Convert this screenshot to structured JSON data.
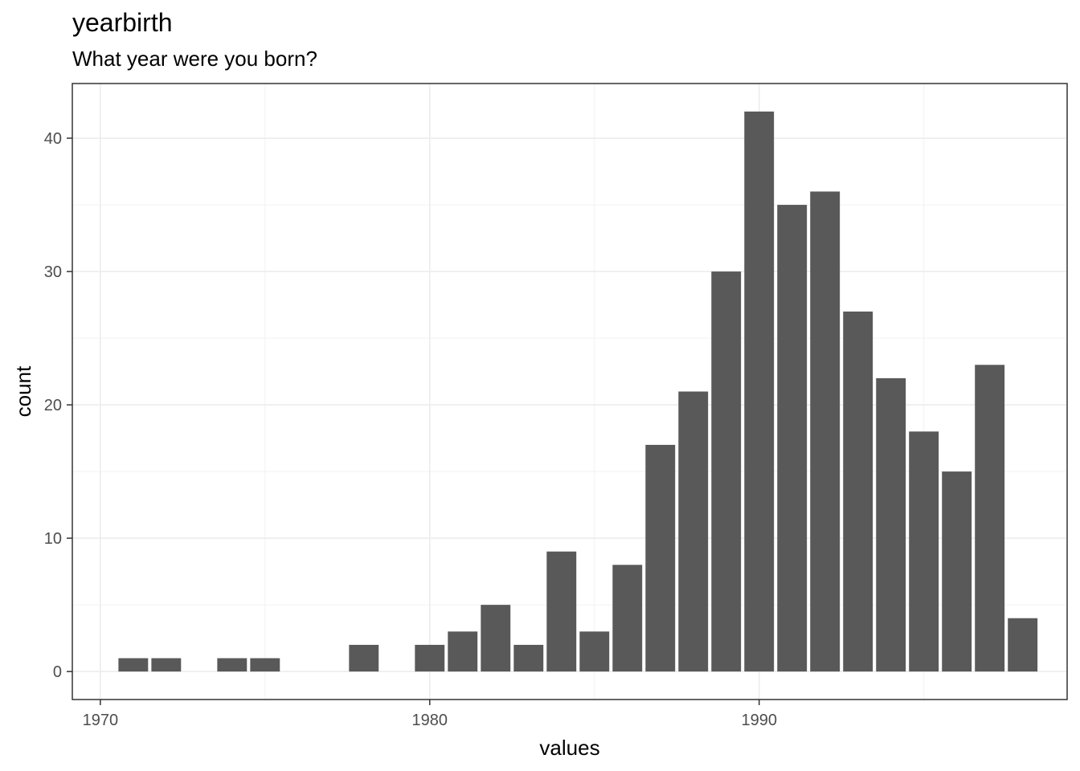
{
  "chart_data": {
    "type": "bar",
    "title": "yearbirth",
    "subtitle": "What year were you born?",
    "xlabel": "values",
    "ylabel": "count",
    "x": [
      1971,
      1972,
      1974,
      1975,
      1978,
      1980,
      1981,
      1982,
      1983,
      1984,
      1985,
      1986,
      1987,
      1988,
      1989,
      1990,
      1991,
      1992,
      1993,
      1994,
      1995,
      1996,
      1997,
      1998
    ],
    "values": [
      1,
      1,
      1,
      1,
      2,
      2,
      3,
      5,
      2,
      9,
      3,
      8,
      17,
      21,
      30,
      42,
      35,
      36,
      27,
      22,
      18,
      15,
      23,
      4
    ],
    "xlim": [
      1969.15,
      1999.35
    ],
    "ylim": [
      -2.1,
      44.1
    ],
    "xticks": [
      1970,
      1980,
      1990
    ],
    "yticks": [
      0,
      10,
      20,
      30,
      40
    ],
    "bar_color": "#595959",
    "grid": true,
    "legend": "none"
  }
}
